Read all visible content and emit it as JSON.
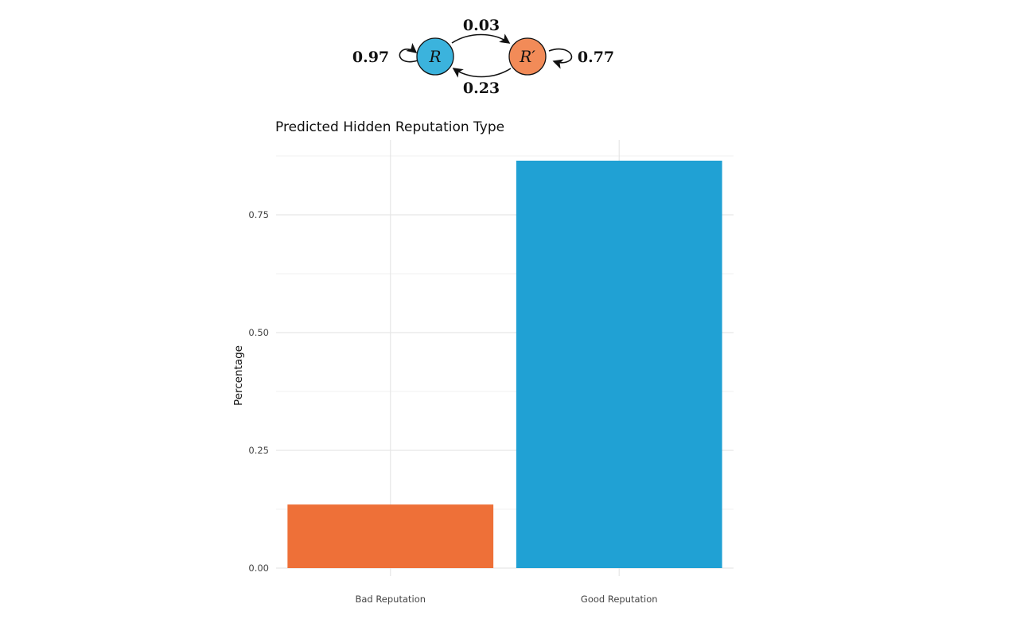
{
  "diagram": {
    "nodes": [
      {
        "label": "R",
        "color": "#3bb3dd"
      },
      {
        "label": "R′",
        "color": "#f28b58"
      }
    ],
    "edges": {
      "R_to_R": "0.97",
      "R_to_Rp": "0.03",
      "Rp_to_R": "0.23",
      "Rp_to_Rp": "0.77"
    }
  },
  "chart_data": {
    "type": "bar",
    "title": "Predicted Hidden Reputation Type",
    "xlabel": "",
    "ylabel": "Percentage",
    "categories": [
      "Bad Reputation",
      "Good Reputation"
    ],
    "values": [
      0.135,
      0.865
    ],
    "colors": [
      "#ee7038",
      "#20a1d4"
    ],
    "ylim": [
      0,
      0.9
    ],
    "yticks": [
      0,
      0.25,
      0.5,
      0.75
    ],
    "ytick_labels": [
      "0.00",
      "0.25",
      "0.50",
      "0.75"
    ],
    "grid": true,
    "legend": "none"
  }
}
